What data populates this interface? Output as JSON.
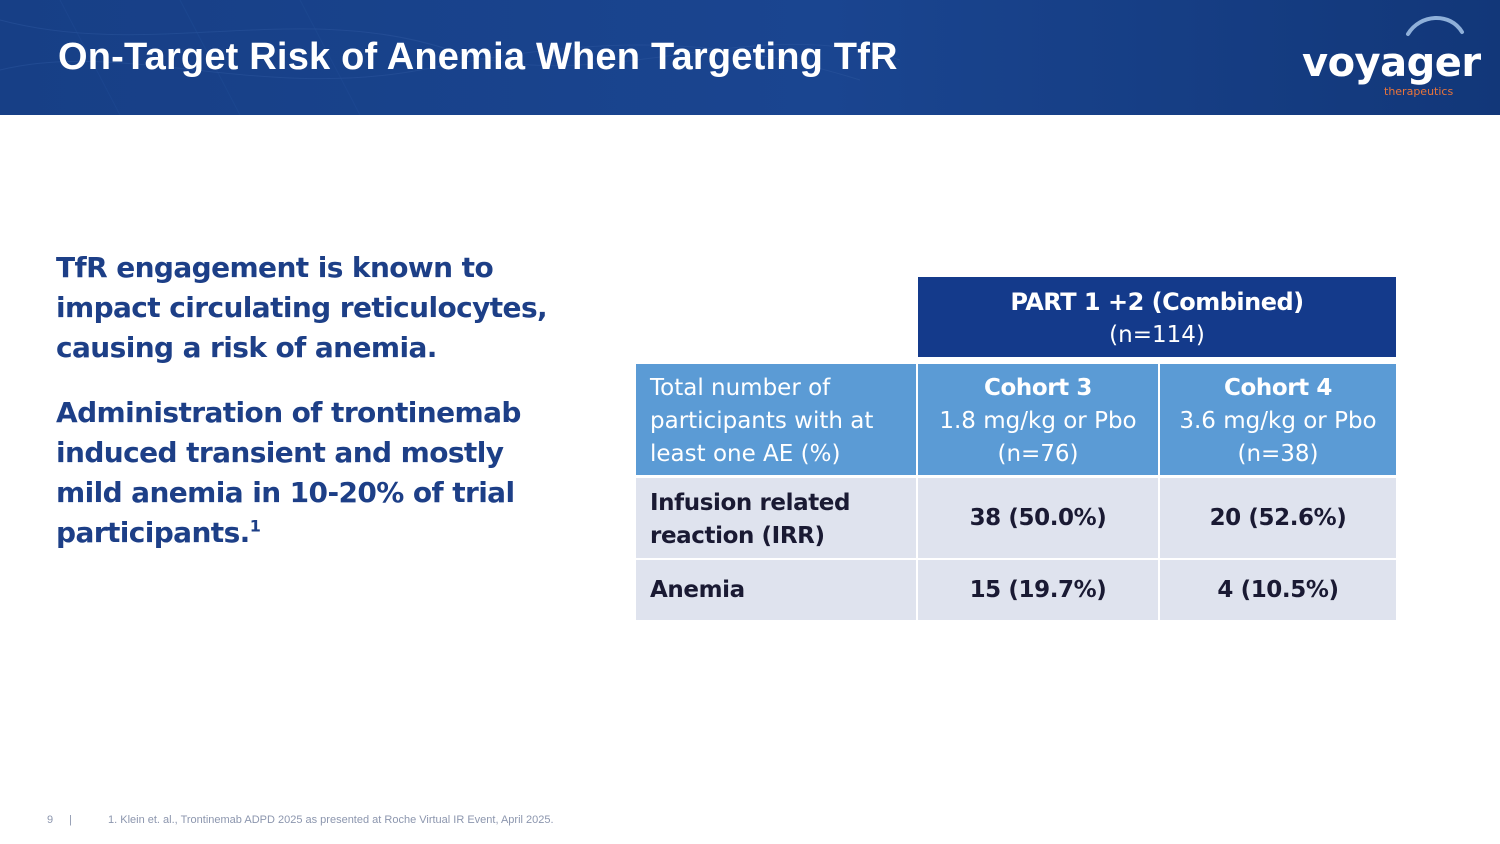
{
  "header": {
    "title": "On-Target Risk of Anemia When Targeting TfR",
    "logo_word": "voyager",
    "logo_sub": "therapeutics"
  },
  "left": {
    "para1": "TfR engagement is known to impact circulating reticulocytes, causing a risk of anemia.",
    "para2": "Administration of trontinemab induced transient and mostly mild anemia in 10-20% of trial participants.",
    "para2_sup": "1"
  },
  "table": {
    "group_header": {
      "line1": "PART 1 +2 (Combined)",
      "line2": "(n=114)"
    },
    "row_header_label": "Total number of participants with at least one AE (%)",
    "columns": [
      {
        "name": "Cohort 3",
        "dose": "1.8 mg/kg or Pbo",
        "n": "(n=76)"
      },
      {
        "name": "Cohort 4",
        "dose": "3.6 mg/kg or Pbo",
        "n": "(n=38)"
      }
    ],
    "rows": [
      {
        "label": "Infusion related reaction (IRR)",
        "values": [
          "38 (50.0%)",
          "20 (52.6%)"
        ]
      },
      {
        "label": "Anemia",
        "values": [
          "15 (19.7%)",
          "4 (10.5%)"
        ]
      }
    ]
  },
  "footer": {
    "page_number": "9",
    "separator": "|",
    "footnote": "1. Klein et. al., Trontinemab ADPD 2025 as presented at Roche Virtual IR Event, April 2025."
  },
  "colors": {
    "header_bg": "#173f86",
    "accent_text": "#1d3f87",
    "table_group_bg": "#143a8b",
    "table_header_bg": "#5b9bd5",
    "table_body_bg": "#dfe3ee",
    "logo_sub": "#e8743b"
  }
}
